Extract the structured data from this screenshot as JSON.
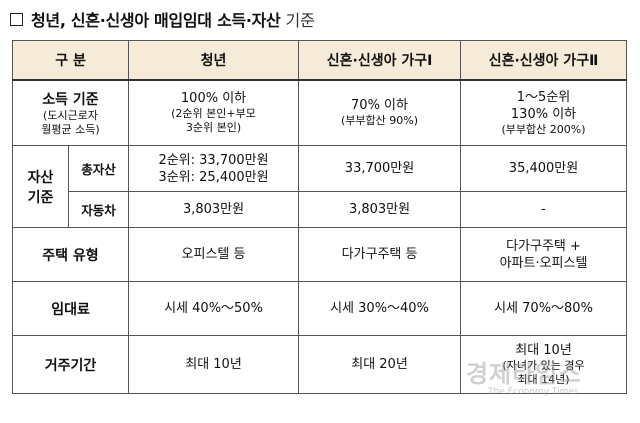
{
  "heading": {
    "bold": "청년, 신혼·신생아 매입임대 소득·자산",
    "light": "기준"
  },
  "columns": [
    "구  분",
    "청년",
    "신혼·신생아 가구Ⅰ",
    "신혼·신생아 가구Ⅱ"
  ],
  "income": {
    "label": "소득 기준",
    "note1": "(도시근로자",
    "note2": "월평균 소득)",
    "youth": [
      "100% 이하",
      "(2순위 본인+부모",
      "3순위 본인)"
    ],
    "newlywed1": [
      "70% 이하",
      "(부부합산 90%)"
    ],
    "newlywed2": [
      "1～5순위",
      "130% 이하",
      "(부부합산 200%)"
    ]
  },
  "assets": {
    "label1": "자산",
    "label2": "기준",
    "total": {
      "label": "총자산",
      "youth": [
        "2순위: 33,700만원",
        "3순위: 25,400만원"
      ],
      "newlywed1": "33,700만원",
      "newlywed2": "35,400만원"
    },
    "car": {
      "label": "자동차",
      "youth": "3,803만원",
      "newlywed1": "3,803만원",
      "newlywed2": "-"
    }
  },
  "housing_type": {
    "label": "주택 유형",
    "youth": "오피스텔 등",
    "newlywed1": "다가구주택 등",
    "newlywed2": [
      "다가구주택 +",
      "아파트·오피스텔"
    ]
  },
  "rent": {
    "label": "임대료",
    "youth": "시세 40%～50%",
    "newlywed1": "시세 30%～40%",
    "newlywed2": "시세 70%～80%"
  },
  "residence": {
    "label": "거주기간",
    "youth": "최대 10년",
    "newlywed1": "최대 20년",
    "newlywed2": [
      "최대 10년",
      "(자녀가 있는 경우",
      "최대 14년)"
    ]
  },
  "watermark": {
    "main": "경제타임스",
    "sub": "The Economy Times"
  }
}
